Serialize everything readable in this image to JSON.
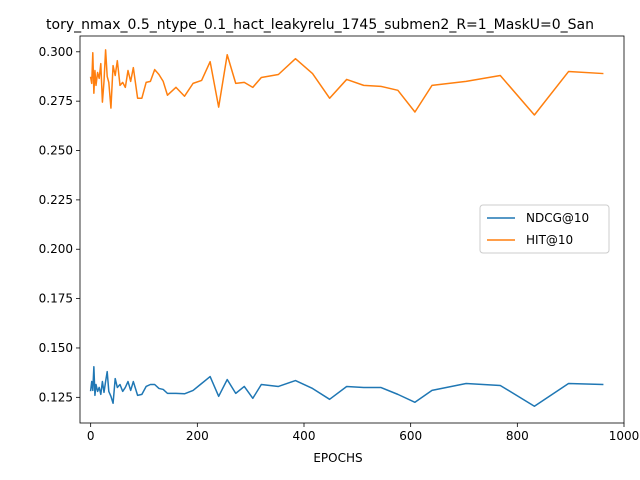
{
  "chart_data": {
    "type": "line",
    "title": "tory_nmax_0.5_ntype_0.1_hact_leakyrelu_1745_submen2_R=1_MaskU=0_San",
    "xlabel": "EPOCHS",
    "ylabel": "",
    "xlim": [
      -20,
      1000
    ],
    "ylim": [
      0.112,
      0.308
    ],
    "xticks": [
      0,
      200,
      400,
      600,
      800,
      1000
    ],
    "yticks": [
      0.125,
      0.15,
      0.175,
      0.2,
      0.225,
      0.25,
      0.275,
      0.3
    ],
    "xtick_labels": [
      "0",
      "200",
      "400",
      "600",
      "800",
      "1000"
    ],
    "ytick_labels": [
      "0.125",
      "0.150",
      "0.175",
      "0.200",
      "0.225",
      "0.250",
      "0.275",
      "0.300"
    ],
    "grid": false,
    "legend_position": "center-right",
    "series": [
      {
        "name": "NDCG@10",
        "color": "#1f77b4",
        "x": [
          0,
          2,
          4,
          6,
          8,
          10,
          13,
          16,
          19,
          22,
          25,
          28,
          31,
          34,
          38,
          42,
          46,
          50,
          55,
          60,
          65,
          70,
          75,
          80,
          88,
          96,
          104,
          112,
          120,
          128,
          136,
          144,
          160,
          176,
          192,
          208,
          224,
          240,
          256,
          272,
          288,
          304,
          320,
          352,
          384,
          416,
          448,
          480,
          512,
          544,
          576,
          608,
          640,
          704,
          768,
          832,
          896,
          960
        ],
        "values": [
          0.1285,
          0.133,
          0.1285,
          0.1405,
          0.126,
          0.1315,
          0.128,
          0.13,
          0.1265,
          0.133,
          0.1275,
          0.133,
          0.138,
          0.128,
          0.1255,
          0.122,
          0.1345,
          0.13,
          0.1315,
          0.128,
          0.13,
          0.133,
          0.1285,
          0.133,
          0.126,
          0.1265,
          0.1305,
          0.1315,
          0.1315,
          0.1295,
          0.129,
          0.127,
          0.127,
          0.1268,
          0.1285,
          0.132,
          0.1355,
          0.1255,
          0.134,
          0.127,
          0.1305,
          0.1245,
          0.1315,
          0.1305,
          0.1335,
          0.1295,
          0.124,
          0.1305,
          0.13,
          0.13,
          0.1265,
          0.1225,
          0.1285,
          0.132,
          0.131,
          0.1205,
          0.132,
          0.1315
        ]
      },
      {
        "name": "HIT@10",
        "color": "#ff7f0e",
        "x": [
          0,
          2,
          4,
          6,
          8,
          10,
          13,
          16,
          19,
          22,
          25,
          28,
          31,
          34,
          38,
          42,
          46,
          50,
          55,
          60,
          65,
          70,
          75,
          80,
          88,
          96,
          104,
          112,
          120,
          128,
          136,
          144,
          160,
          176,
          192,
          208,
          224,
          240,
          256,
          272,
          288,
          304,
          320,
          352,
          384,
          416,
          448,
          480,
          512,
          544,
          576,
          608,
          640,
          704,
          768,
          832,
          896,
          960
        ],
        "values": [
          0.287,
          0.284,
          0.2995,
          0.279,
          0.2905,
          0.283,
          0.2895,
          0.2865,
          0.294,
          0.2745,
          0.285,
          0.301,
          0.2875,
          0.2845,
          0.2715,
          0.293,
          0.288,
          0.2955,
          0.283,
          0.2845,
          0.282,
          0.2905,
          0.285,
          0.292,
          0.2765,
          0.2765,
          0.2845,
          0.285,
          0.291,
          0.2885,
          0.285,
          0.278,
          0.282,
          0.2775,
          0.284,
          0.2855,
          0.295,
          0.272,
          0.2985,
          0.284,
          0.2845,
          0.282,
          0.287,
          0.2885,
          0.2965,
          0.289,
          0.2765,
          0.286,
          0.283,
          0.2825,
          0.2805,
          0.2695,
          0.283,
          0.285,
          0.288,
          0.268,
          0.29,
          0.289
        ]
      }
    ]
  }
}
